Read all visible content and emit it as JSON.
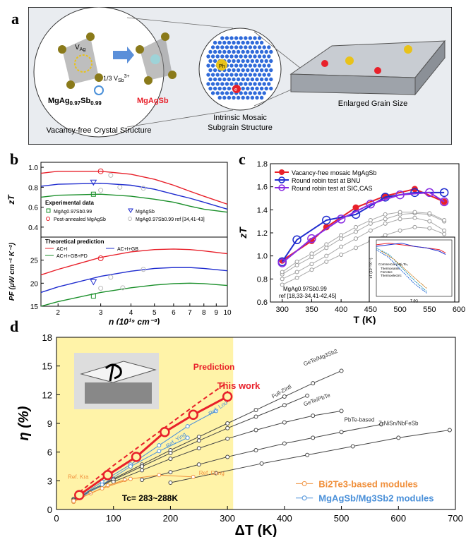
{
  "panels": {
    "a": "a",
    "b": "b",
    "c": "c",
    "d": "d"
  },
  "panel_a": {
    "lattice_left": "MgAg",
    "lattice_left_sub1": "0.97",
    "lattice_left_sb": "Sb",
    "lattice_left_sub2": "0.99",
    "lattice_right": "MgAgSb",
    "vag": "V",
    "vag_sub": "Ag",
    "vsb_frac": "1/3 V",
    "vsb_sub": "Sb",
    "vsb_sup": "3+",
    "cap1": "Vacancy-free Crystal Structure",
    "cap2_line1": "Intrinsic Mosaic",
    "cap2_line2": "Subgrain Structure",
    "cap3": "Enlarged Grain Size",
    "ph": "Ph",
    "e": "e"
  },
  "colors": {
    "red": "#e8202a",
    "blue": "#1f2ccf",
    "green": "#1a8f2a",
    "purple": "#8a2be2",
    "gray": "#9a9a9a",
    "orange": "#f0903c",
    "lightblue": "#4a90d9",
    "dark": "#444444",
    "highlight": "#fff3a8"
  },
  "chart_data": [
    {
      "id": "b-top",
      "type": "line",
      "ylabel": "zT",
      "xlim": [
        1.7,
        10
      ],
      "ylim": [
        0.3,
        1.05
      ],
      "yticks": [
        0.4,
        0.6,
        0.8,
        1.0
      ],
      "xscale": "log",
      "legend_title1": "Experimental data",
      "legend": [
        "MgAg0.97Sb0.99",
        "MgAgSb",
        "Post-annealed MgAgSb",
        "MgAg0.97Sb0.99 ref [34,41-43]"
      ],
      "series": [
        {
          "name": "AC+I",
          "color": "red",
          "x": [
            1.7,
            2,
            3,
            4,
            5,
            6,
            7,
            8,
            10
          ],
          "y": [
            0.94,
            0.96,
            0.96,
            0.93,
            0.88,
            0.82,
            0.76,
            0.71,
            0.63
          ]
        },
        {
          "name": "AC+I+GB",
          "color": "blue",
          "x": [
            1.7,
            2,
            3,
            4,
            5,
            6,
            7,
            8,
            10
          ],
          "y": [
            0.81,
            0.83,
            0.84,
            0.82,
            0.78,
            0.73,
            0.69,
            0.65,
            0.58
          ]
        },
        {
          "name": "AC+I+GB+PD",
          "color": "green",
          "x": [
            1.7,
            2,
            3,
            4,
            5,
            6,
            7,
            8,
            10
          ],
          "y": [
            0.7,
            0.72,
            0.73,
            0.71,
            0.68,
            0.65,
            0.61,
            0.58,
            0.55
          ]
        }
      ],
      "points": [
        {
          "set": "green-square",
          "x": 2.8,
          "y": 0.73
        },
        {
          "set": "blue-triangle",
          "x": 2.8,
          "y": 0.85
        },
        {
          "set": "red-circle",
          "x": 3.0,
          "y": 0.96
        },
        {
          "set": "gray-circle",
          "x": 3.3,
          "y": 0.92
        },
        {
          "set": "gray-circle",
          "x": 3.6,
          "y": 0.8
        },
        {
          "set": "gray-circle",
          "x": 4.5,
          "y": 0.79
        },
        {
          "set": "gray-circle",
          "x": 3.0,
          "y": 0.77
        }
      ]
    },
    {
      "id": "b-bottom",
      "type": "line",
      "ylabel": "PF (μW cm⁻¹ K⁻²)",
      "xlabel": "n (10¹⁹ cm⁻³)",
      "xlim": [
        1.7,
        10
      ],
      "ylim": [
        15,
        30
      ],
      "yticks": [
        15,
        20,
        25
      ],
      "xticks": [
        2,
        3,
        4,
        5,
        6,
        7,
        8,
        9,
        10
      ],
      "xscale": "log",
      "legend_title": "Theoretical prediction",
      "legend": [
        "AC+I",
        "AC+I+GB",
        "AC+I+GB+PD"
      ],
      "series": [
        {
          "name": "AC+I",
          "color": "red",
          "x": [
            1.7,
            2,
            3,
            4,
            5,
            6,
            7,
            8,
            10
          ],
          "y": [
            21.8,
            23,
            25.6,
            26.8,
            27.3,
            27.4,
            27.3,
            27.0,
            26.4
          ]
        },
        {
          "name": "AC+I+GB",
          "color": "blue",
          "x": [
            1.7,
            2,
            3,
            4,
            5,
            6,
            7,
            8,
            10
          ],
          "y": [
            18.0,
            19.2,
            21.5,
            22.6,
            23.2,
            23.4,
            23.4,
            23.2,
            22.7
          ]
        },
        {
          "name": "AC+I+GB+PD",
          "color": "green",
          "x": [
            1.7,
            2,
            3,
            4,
            5,
            6,
            7,
            8,
            10
          ],
          "y": [
            15.0,
            16.0,
            18.0,
            19.0,
            19.6,
            19.9,
            20.0,
            19.9,
            19.5
          ]
        }
      ],
      "points": [
        {
          "set": "green-square",
          "x": 2.8,
          "y": 17.2
        },
        {
          "set": "blue-triangle",
          "x": 2.8,
          "y": 20.3
        },
        {
          "set": "red-circle",
          "x": 3.0,
          "y": 25.4
        },
        {
          "set": "gray-circle",
          "x": 3.3,
          "y": 21.3
        },
        {
          "set": "gray-circle",
          "x": 3.7,
          "y": 19.0
        },
        {
          "set": "gray-circle",
          "x": 4.5,
          "y": 23.0
        },
        {
          "set": "gray-circle",
          "x": 3.0,
          "y": 18.9
        }
      ]
    },
    {
      "id": "c",
      "type": "line",
      "ylabel": "zT",
      "xlabel": "T (K)",
      "xlim": [
        280,
        600
      ],
      "ylim": [
        0.6,
        1.8
      ],
      "xticks": [
        300,
        350,
        400,
        450,
        500,
        550,
        600
      ],
      "yticks": [
        0.6,
        0.8,
        1.0,
        1.2,
        1.4,
        1.6,
        1.8
      ],
      "legend": [
        "Vacancy-free mosaic MgAgSb",
        "Round robin test at BNU",
        "Round robin test at SIC,CAS"
      ],
      "gray_label_line1": "MgAg0.97Sb0.99",
      "gray_label_line2": "ref [18,33-34,41-42,45]",
      "series": [
        {
          "name": "Vacancy-free mosaic MgAgSb",
          "color": "red",
          "x": [
            300,
            350,
            375,
            425,
            475,
            525,
            575
          ],
          "y": [
            0.96,
            1.13,
            1.25,
            1.42,
            1.52,
            1.58,
            1.47
          ]
        },
        {
          "name": "Round robin test at BNU",
          "color": "blue",
          "x": [
            300,
            325,
            375,
            425,
            475,
            525,
            575
          ],
          "y": [
            0.95,
            1.14,
            1.31,
            1.36,
            1.51,
            1.55,
            1.55
          ]
        },
        {
          "name": "Round robin test at SIC,CAS",
          "color": "purple",
          "x": [
            300,
            350,
            400,
            450,
            500,
            550,
            575
          ],
          "y": [
            0.94,
            1.15,
            1.32,
            1.45,
            1.53,
            1.55,
            1.47
          ]
        }
      ],
      "gray_series": [
        {
          "x": [
            300,
            325,
            350,
            375,
            400,
            425,
            450,
            475,
            500,
            525,
            550,
            575
          ],
          "y": [
            0.8,
            0.86,
            0.93,
            1.0,
            1.08,
            1.15,
            1.22,
            1.28,
            1.32,
            1.33,
            1.3,
            1.22
          ]
        },
        {
          "x": [
            300,
            325,
            350,
            375,
            400,
            425,
            450,
            475,
            500,
            525,
            550,
            575
          ],
          "y": [
            0.84,
            0.92,
            0.99,
            1.07,
            1.15,
            1.21,
            1.28,
            1.32,
            1.36,
            1.37,
            1.36,
            1.3
          ]
        },
        {
          "x": [
            300,
            325,
            350,
            375,
            400,
            425,
            450,
            475,
            500,
            525,
            550,
            575
          ],
          "y": [
            0.86,
            0.95,
            1.02,
            1.1,
            1.18,
            1.25,
            1.31,
            1.36,
            1.38,
            1.38,
            1.37,
            1.31
          ]
        },
        {
          "x": [
            300,
            325,
            350,
            375,
            400,
            425,
            450,
            475,
            500,
            525,
            550,
            575
          ],
          "y": [
            0.75,
            0.81,
            0.88,
            0.95,
            1.01,
            1.07,
            1.13,
            1.18,
            1.22,
            1.25,
            1.24,
            1.19
          ]
        }
      ],
      "inset": {
        "xlabel": "T (K)",
        "ylabel": "zT (10⁻³ K⁻¹)",
        "legend_title": "Commercial p-Bi₂Te₃",
        "legend": [
          "Thermonamic",
          "Ferrotec",
          "Thermoelectric"
        ]
      }
    },
    {
      "id": "d",
      "type": "line",
      "ylabel": "η (%)",
      "xlabel": "ΔT (K)",
      "xlim": [
        0,
        700
      ],
      "ylim": [
        0,
        18
      ],
      "xticks": [
        0,
        100,
        200,
        300,
        400,
        500,
        600,
        700
      ],
      "yticks": [
        0,
        3,
        6,
        9,
        12,
        15,
        18
      ],
      "legend": [
        "Bi2Te3-based modules",
        "MgAgSb/Mg3Sb2 modules"
      ],
      "tc": "Tc= 283~288K",
      "labels": {
        "prediction": "Prediction",
        "this_work": "This work",
        "ref_lou": "Ref. Lou",
        "ref_ying": "Ref. Ying",
        "ref_deng": "Ref. Deng",
        "ref_kraemer": "Ref. Kra",
        "getemg": "GeTe/Mg3Sb2",
        "fullzintl": "Full-Zintl",
        "getepbte": "GeTe/PbTe",
        "pbte": "PbTe-based",
        "zrnisn": "ZrNiSn/NbFeSb"
      },
      "prediction": {
        "x": [
          40,
          100,
          150,
          200,
          250,
          300
        ],
        "y": [
          1.8,
          4.6,
          6.8,
          9.0,
          11.2,
          13.3
        ]
      },
      "this_work": {
        "x": [
          40,
          90,
          140,
          190,
          240,
          300
        ],
        "y": [
          1.5,
          3.6,
          5.5,
          8.1,
          9.9,
          11.8
        ],
        "err": [
          0.2,
          0.2,
          0.3,
          0.4,
          0.5,
          0.6
        ]
      },
      "ref_lines": [
        {
          "name": "GeTe/Mg3Sb2",
          "color": "dark",
          "x": [
            30,
            100,
            150,
            200,
            250,
            300,
            350,
            400,
            450,
            500
          ],
          "y": [
            1.1,
            3.2,
            4.7,
            6.2,
            7.6,
            9.0,
            10.4,
            11.8,
            13.2,
            14.5
          ]
        },
        {
          "name": "Full-Zintl",
          "color": "dark",
          "x": [
            30,
            100,
            150,
            200,
            250,
            300,
            350,
            400,
            440
          ],
          "y": [
            1.0,
            3.1,
            4.5,
            5.9,
            7.2,
            8.5,
            9.7,
            10.9,
            11.9
          ]
        },
        {
          "name": "GeTe/PbTe",
          "color": "dark",
          "x": [
            100,
            150,
            200,
            250,
            300,
            350,
            400,
            450,
            500
          ],
          "y": [
            2.9,
            4.1,
            5.3,
            6.4,
            7.4,
            8.3,
            9.1,
            9.8,
            10.3
          ]
        },
        {
          "name": "PbTe-based",
          "color": "dark",
          "x": [
            150,
            200,
            250,
            300,
            350,
            400,
            450,
            500,
            570
          ],
          "y": [
            3.1,
            3.9,
            4.7,
            5.5,
            6.2,
            6.9,
            7.5,
            8.1,
            8.9
          ]
        },
        {
          "name": "ZrNiSn/NbFeSb",
          "color": "dark",
          "x": [
            200,
            280,
            360,
            440,
            520,
            600,
            690
          ],
          "y": [
            2.8,
            3.8,
            4.8,
            5.7,
            6.6,
            7.5,
            8.3
          ]
        },
        {
          "name": "Ref. Lou",
          "color": "lightblue",
          "x": [
            30,
            80,
            130,
            180,
            230,
            280
          ],
          "y": [
            0.9,
            2.9,
            4.7,
            6.7,
            8.7,
            10.3
          ]
        },
        {
          "name": "Ref. Ying",
          "color": "lightblue",
          "x": [
            30,
            80,
            130,
            180,
            230
          ],
          "y": [
            0.8,
            2.6,
            4.5,
            6.1,
            7.5
          ]
        },
        {
          "name": "Ref. Kra",
          "color": "orange",
          "x": [
            30,
            60,
            90,
            120
          ],
          "y": [
            0.8,
            1.7,
            2.5,
            3.1
          ]
        },
        {
          "name": "Ref. Deng",
          "color": "orange",
          "x": [
            30,
            80,
            130,
            180,
            240
          ],
          "y": [
            0.9,
            2.2,
            3.2,
            3.6,
            3.4
          ]
        }
      ]
    }
  ]
}
